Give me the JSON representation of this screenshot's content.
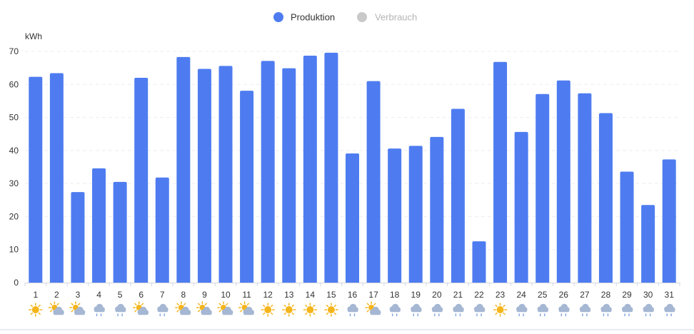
{
  "legend": [
    {
      "label": "Produktion",
      "color": "#4e7cf0",
      "active": true
    },
    {
      "label": "Verbrauch",
      "color": "#c9c9c9",
      "active": false
    }
  ],
  "chart_data": {
    "type": "bar",
    "ylabel": "kWh",
    "ylim": [
      0,
      70
    ],
    "yticks": [
      0,
      10,
      20,
      30,
      40,
      50,
      60,
      70
    ],
    "grid": true,
    "legend_position": "top-center",
    "categories": [
      "1",
      "2",
      "3",
      "4",
      "5",
      "6",
      "7",
      "8",
      "9",
      "10",
      "11",
      "12",
      "13",
      "14",
      "15",
      "16",
      "17",
      "18",
      "19",
      "20",
      "21",
      "22",
      "23",
      "24",
      "25",
      "26",
      "27",
      "28",
      "29",
      "30",
      "31"
    ],
    "series": [
      {
        "name": "Produktion",
        "color": "#4e7cf0",
        "values": [
          62.3,
          63.4,
          27.4,
          34.6,
          30.5,
          62.0,
          31.8,
          68.3,
          64.7,
          65.6,
          58.1,
          67.1,
          64.9,
          68.7,
          69.6,
          39.1,
          61.0,
          40.6,
          41.4,
          44.1,
          52.6,
          12.5,
          66.8,
          45.6,
          57.1,
          61.2,
          57.3,
          51.3,
          33.6,
          23.5,
          37.3
        ]
      }
    ],
    "weather_icons": [
      "sun",
      "sun-cloud",
      "sun-cloud",
      "rain",
      "rain",
      "sun-cloud",
      "rain",
      "sun-cloud",
      "sun-cloud",
      "sun-cloud",
      "sun-cloud",
      "sun",
      "sun",
      "sun",
      "sun",
      "rain",
      "sun-cloud",
      "rain",
      "rain",
      "rain",
      "rain",
      "rain",
      "sun",
      "rain",
      "rain",
      "rain",
      "rain",
      "rain",
      "rain",
      "rain",
      "rain"
    ]
  }
}
